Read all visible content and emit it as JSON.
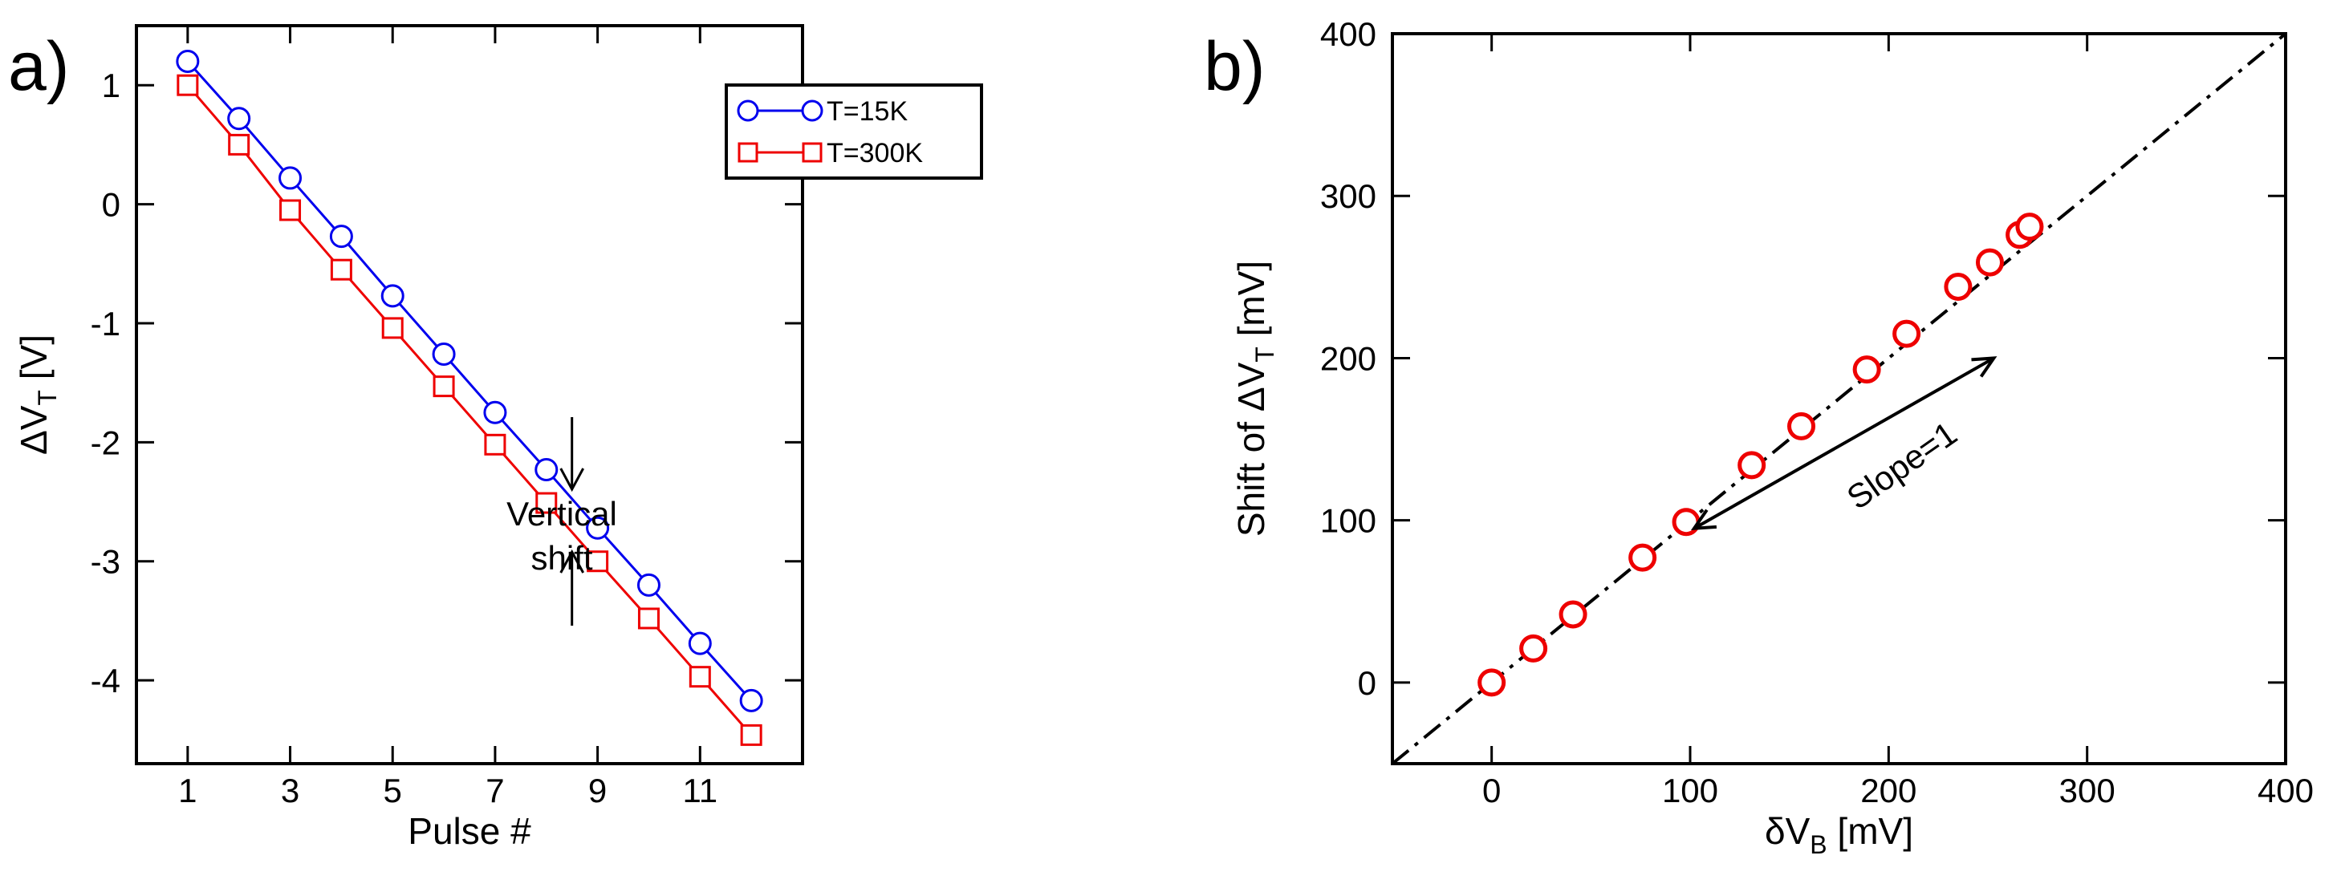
{
  "panels": {
    "a": {
      "label": "a)"
    },
    "b": {
      "label": "b)"
    }
  },
  "colors": {
    "blue": "#0000ee",
    "red": "#ee0000",
    "black": "#000000"
  },
  "chart_data": [
    {
      "id": "a",
      "type": "line",
      "xlabel": "Pulse #",
      "ylabel_main": "ΔV",
      "ylabel_sub": "T",
      "ylabel_unit": " [V]",
      "xlim": [
        0,
        13
      ],
      "ylim": [
        -4.7,
        1.5
      ],
      "xticks": [
        1,
        3,
        5,
        7,
        9,
        11
      ],
      "xtick_labels": [
        "1",
        "3",
        "5",
        "7",
        "9",
        "11"
      ],
      "yticks": [
        1,
        0,
        -1,
        -2,
        -3,
        -4
      ],
      "ytick_labels": [
        "1",
        "0",
        "-1",
        "-2",
        "-3",
        "-4"
      ],
      "x": [
        1,
        2,
        3,
        4,
        5,
        6,
        7,
        8,
        9,
        10,
        11,
        12
      ],
      "series": [
        {
          "name": "T=15K",
          "marker": "circle",
          "color": "#0000ee",
          "values": [
            1.2,
            0.72,
            0.22,
            -0.27,
            -0.77,
            -1.26,
            -1.75,
            -2.23,
            -2.72,
            -3.2,
            -3.69,
            -4.17
          ]
        },
        {
          "name": "T=300K",
          "marker": "square",
          "color": "#ee0000",
          "values": [
            1.0,
            0.5,
            -0.05,
            -0.55,
            -1.04,
            -1.53,
            -2.02,
            -2.51,
            -3.0,
            -3.48,
            -3.97,
            -4.46
          ]
        }
      ],
      "legend_position": "top-right",
      "annotations": {
        "line1": "Vertical",
        "line2": "shift"
      }
    },
    {
      "id": "b",
      "type": "scatter",
      "xlabel_main": "δV",
      "xlabel_sub": "B",
      "xlabel_unit": " [mV]",
      "ylabel_main": "Shift of ΔV",
      "ylabel_sub": "T",
      "ylabel_unit": " [mV]",
      "xlim": [
        -50,
        400
      ],
      "ylim": [
        -50,
        400
      ],
      "xticks": [
        0,
        100,
        200,
        300,
        400
      ],
      "xtick_labels": [
        "0",
        "100",
        "200",
        "300",
        "400"
      ],
      "yticks": [
        0,
        100,
        200,
        300,
        400
      ],
      "ytick_labels": [
        "0",
        "100",
        "200",
        "300",
        "400"
      ],
      "points": [
        [
          0,
          0
        ],
        [
          21,
          21
        ],
        [
          41,
          42
        ],
        [
          76,
          77
        ],
        [
          98,
          99
        ],
        [
          131,
          134
        ],
        [
          156,
          158
        ],
        [
          189,
          193
        ],
        [
          209,
          215
        ],
        [
          235,
          244
        ],
        [
          251,
          259
        ],
        [
          266,
          276
        ],
        [
          271,
          281
        ]
      ],
      "marker": "circle",
      "color": "#ee0000",
      "reference_line": {
        "slope": 1,
        "style": "dash-dot"
      },
      "annotations": {
        "slope_label": "Slope=1"
      }
    }
  ]
}
